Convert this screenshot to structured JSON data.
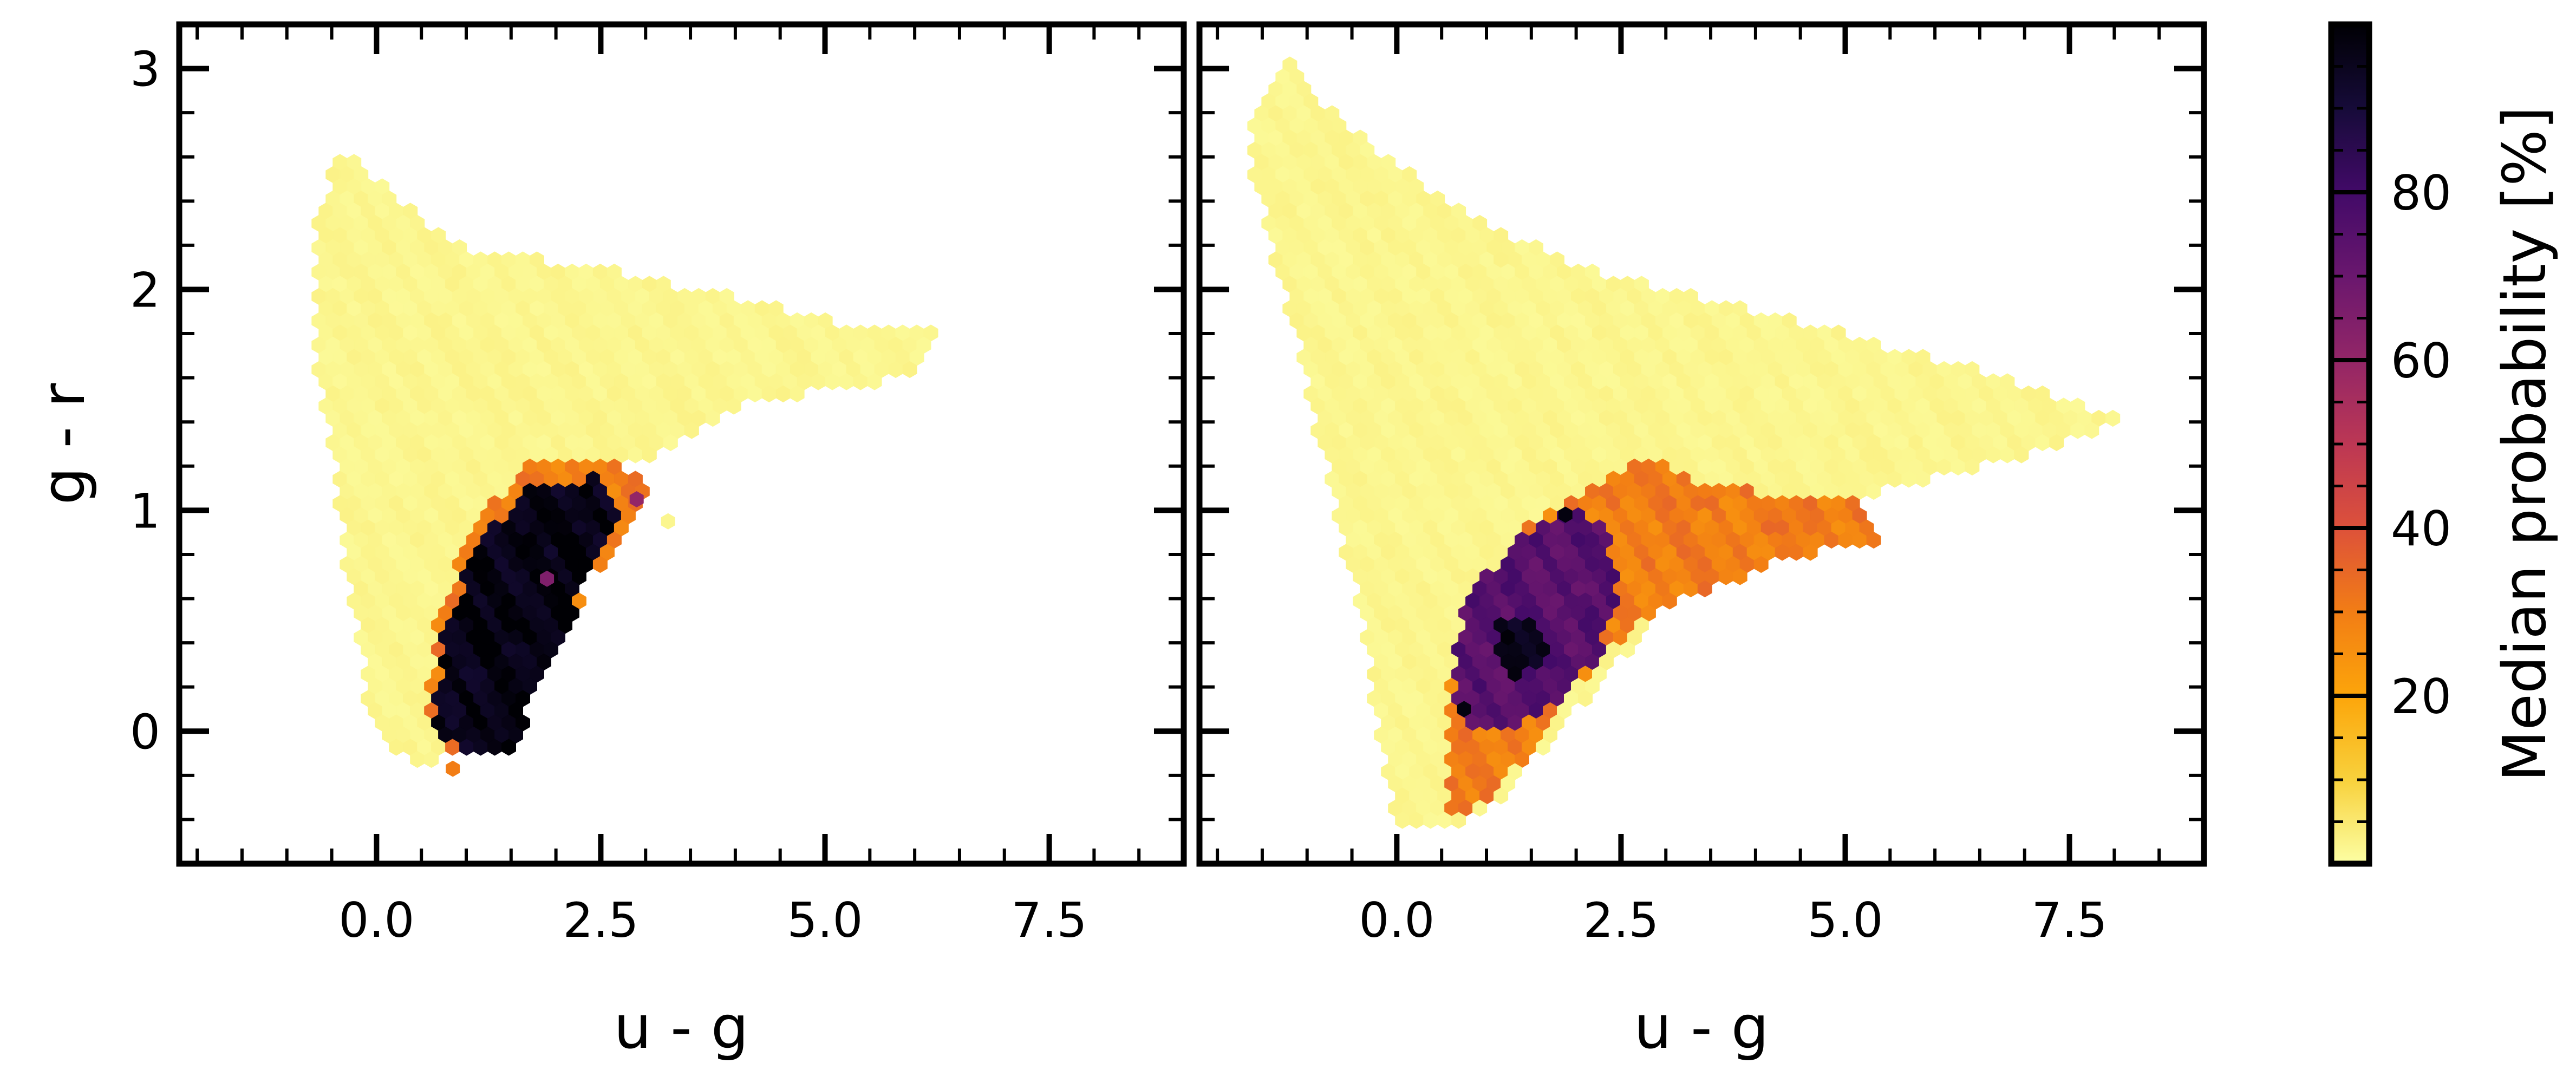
{
  "chart_data": [
    {
      "type": "hexbin",
      "panel": "left",
      "xlabel": "u - g",
      "ylabel": "g - r",
      "xlim": [
        -2.2,
        9.0
      ],
      "ylim": [
        -0.6,
        3.2
      ],
      "xticks": [
        0.0,
        2.5,
        5.0,
        7.5
      ],
      "xtick_labels": [
        "0.0",
        "2.5",
        "5.0",
        "7.5"
      ],
      "yticks": [
        0,
        1,
        2,
        3
      ],
      "ytick_labels": [
        "0",
        "1",
        "2",
        "3"
      ],
      "regions": [
        {
          "name": "",
          "value": 2,
          "polygon": [
            [
              -0.7,
              1.7
            ],
            [
              -0.7,
              2.3
            ],
            [
              -0.4,
              2.65
            ],
            [
              0.3,
              2.4
            ],
            [
              0.9,
              2.2
            ],
            [
              1.5,
              2.15
            ],
            [
              2.5,
              2.1
            ],
            [
              3.6,
              2.0
            ],
            [
              5.2,
              1.85
            ],
            [
              6.3,
              1.8
            ],
            [
              6.0,
              1.6
            ],
            [
              5.0,
              1.55
            ],
            [
              3.9,
              1.45
            ],
            [
              3.3,
              1.3
            ],
            [
              3.0,
              1.22
            ],
            [
              2.4,
              1.22
            ],
            [
              1.5,
              0.9
            ],
            [
              1.0,
              0.4
            ],
            [
              0.8,
              0.0
            ],
            [
              0.7,
              -0.15
            ],
            [
              0.2,
              -0.12
            ],
            [
              -0.1,
              0.1
            ],
            [
              -0.2,
              0.4
            ],
            [
              -0.4,
              0.9
            ],
            [
              -0.5,
              1.3
            ]
          ]
        },
        {
          "name": "",
          "value": 30,
          "polygon": [
            [
              0.55,
              0.1
            ],
            [
              0.7,
              0.55
            ],
            [
              1.1,
              0.95
            ],
            [
              1.7,
              1.2
            ],
            [
              2.5,
              1.22
            ],
            [
              3.0,
              1.15
            ],
            [
              2.9,
              0.95
            ],
            [
              2.4,
              0.7
            ],
            [
              1.8,
              0.2
            ],
            [
              1.0,
              -0.12
            ],
            [
              0.7,
              -0.05
            ]
          ]
        },
        {
          "name": "",
          "value": 97,
          "polygon": [
            [
              0.65,
              0.05
            ],
            [
              0.75,
              0.45
            ],
            [
              1.15,
              0.85
            ],
            [
              1.7,
              1.1
            ],
            [
              2.4,
              1.15
            ],
            [
              2.75,
              0.95
            ],
            [
              2.45,
              0.75
            ],
            [
              1.9,
              0.3
            ],
            [
              1.5,
              -0.1
            ],
            [
              1.05,
              -0.1
            ],
            [
              0.75,
              -0.02
            ]
          ]
        }
      ],
      "outliers": [
        {
          "x": 3.25,
          "y": 0.95,
          "value": 2
        },
        {
          "x": 0.85,
          "y": -0.17,
          "value": 30
        },
        {
          "x": 1.9,
          "y": 0.69,
          "value": 65
        },
        {
          "x": 2.9,
          "y": 1.05,
          "value": 60
        }
      ]
    },
    {
      "type": "hexbin",
      "panel": "right",
      "xlabel": "u - g",
      "ylabel": "",
      "xlim": [
        -2.2,
        9.0
      ],
      "ylim": [
        -0.6,
        3.2
      ],
      "xticks": [
        0.0,
        2.5,
        5.0,
        7.5
      ],
      "xtick_labels": [
        "0.0",
        "2.5",
        "5.0",
        "7.5"
      ],
      "regions": [
        {
          "name": "",
          "value": 2,
          "polygon": [
            [
              -1.6,
              2.8
            ],
            [
              -1.2,
              3.05
            ],
            [
              -0.7,
              2.8
            ],
            [
              0.5,
              2.4
            ],
            [
              2.0,
              2.1
            ],
            [
              3.5,
              1.95
            ],
            [
              5.0,
              1.8
            ],
            [
              7.2,
              1.55
            ],
            [
              8.1,
              1.4
            ],
            [
              7.0,
              1.25
            ],
            [
              5.5,
              1.1
            ],
            [
              4.3,
              0.85
            ],
            [
              3.0,
              0.55
            ],
            [
              2.0,
              0.1
            ],
            [
              1.2,
              -0.3
            ],
            [
              0.5,
              -0.45
            ],
            [
              0.0,
              -0.42
            ],
            [
              -0.1,
              -0.25
            ],
            [
              -0.4,
              0.5
            ],
            [
              -0.8,
              1.2
            ],
            [
              -1.2,
              1.9
            ],
            [
              -1.6,
              2.5
            ]
          ]
        },
        {
          "name": "",
          "value": 30,
          "polygon": [
            [
              0.6,
              -0.35
            ],
            [
              0.6,
              0.2
            ],
            [
              0.9,
              0.6
            ],
            [
              1.5,
              0.95
            ],
            [
              2.3,
              1.15
            ],
            [
              2.9,
              1.25
            ],
            [
              3.5,
              1.1
            ],
            [
              5.2,
              1.05
            ],
            [
              5.4,
              0.85
            ],
            [
              4.5,
              0.8
            ],
            [
              3.5,
              0.65
            ],
            [
              2.7,
              0.5
            ],
            [
              2.0,
              0.2
            ],
            [
              1.4,
              -0.15
            ],
            [
              0.9,
              -0.35
            ]
          ]
        },
        {
          "name": "",
          "value": 75,
          "polygon": [
            [
              0.6,
              0.25
            ],
            [
              0.8,
              0.6
            ],
            [
              1.3,
              0.85
            ],
            [
              1.9,
              1.0
            ],
            [
              2.3,
              0.95
            ],
            [
              2.5,
              0.6
            ],
            [
              2.2,
              0.3
            ],
            [
              1.6,
              0.05
            ],
            [
              1.0,
              0.0
            ],
            [
              0.7,
              0.05
            ]
          ]
        },
        {
          "name": "",
          "value": 95,
          "polygon": [
            [
              1.1,
              0.3
            ],
            [
              1.1,
              0.48
            ],
            [
              1.45,
              0.52
            ],
            [
              1.7,
              0.4
            ],
            [
              1.55,
              0.28
            ],
            [
              1.3,
              0.25
            ]
          ]
        }
      ],
      "outliers": [
        {
          "x": 1.88,
          "y": 0.98,
          "value": 98
        },
        {
          "x": 0.75,
          "y": 0.1,
          "value": 98
        }
      ]
    }
  ],
  "colorbar": {
    "label": "Median probability [%]",
    "ticks": [
      20,
      40,
      60,
      80
    ],
    "tick_labels": [
      "20",
      "40",
      "60",
      "80"
    ],
    "range": [
      0,
      100
    ],
    "colormap": "inferno_r",
    "stops": [
      "#fcffa4",
      "#f8d13c",
      "#fca50a",
      "#f27d15",
      "#dd513a",
      "#bc3754",
      "#932667",
      "#6a176e",
      "#420a68",
      "#160b39",
      "#000004"
    ]
  }
}
